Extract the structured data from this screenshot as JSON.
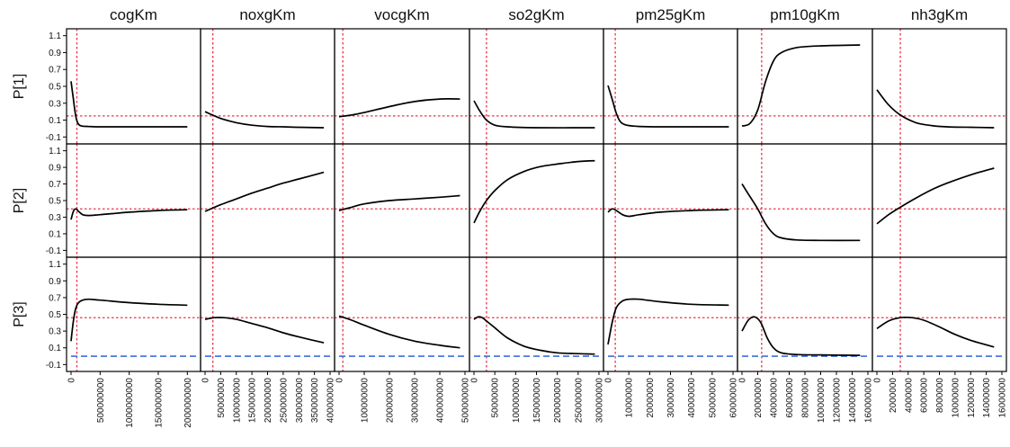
{
  "chart_data": {
    "type": "line",
    "columns": [
      "cogKm",
      "noxgKm",
      "vocgKm",
      "so2gKm",
      "pm25gKm",
      "pm10gKm",
      "nh3gKm"
    ],
    "rows": [
      "P[1]",
      "P[2]",
      "P[3]"
    ],
    "ylim": [
      -0.15,
      1.15
    ],
    "yticks": [
      "-0.1",
      "0.1",
      "0.3",
      "0.5",
      "0.7",
      "0.9",
      "1.1"
    ],
    "xticks": [
      [
        "0",
        "500000000",
        "1000000000",
        "1500000000",
        "2000000000"
      ],
      [
        "0",
        "50000000",
        "100000000",
        "150000000",
        "200000000",
        "250000000",
        "300000000",
        "350000000",
        "400000000"
      ],
      [
        "0",
        "100000000",
        "200000000",
        "300000000",
        "400000000",
        "500000000"
      ],
      [
        "0",
        "50000000",
        "100000000",
        "150000000",
        "200000000",
        "250000000",
        "300000000"
      ],
      [
        "0",
        "10000000",
        "20000000",
        "30000000",
        "40000000",
        "50000000",
        "60000000"
      ],
      [
        "0",
        "20000000",
        "40000000",
        "60000000",
        "80000000",
        "100000000",
        "120000000",
        "140000000",
        "160000000"
      ],
      [
        "0",
        "2000000",
        "4000000",
        "6000000",
        "8000000",
        "10000000",
        "12000000",
        "14000000",
        "16000000"
      ]
    ],
    "xlim": [
      [
        0,
        2150000000
      ],
      [
        0,
        400000000
      ],
      [
        0,
        500000000
      ],
      [
        0,
        300000000
      ],
      [
        0,
        60000000
      ],
      [
        0,
        160000000
      ],
      [
        0,
        16000000
      ]
    ],
    "ref_x": [
      100000000,
      25000000,
      15000000,
      30000000,
      3500000,
      25000000,
      3000000
    ],
    "ref_y": [
      0.15,
      0.4,
      0.46
    ],
    "dashed_y_row3": 0.0,
    "line_color": "#000000",
    "ref_color": "#e8334a",
    "dashed_color": "#3a6fd8",
    "series": [
      [
        {
          "name": "P[1]",
          "x": [
            0,
            40000000,
            80000000,
            120000000,
            180000000,
            300000000,
            500000000,
            1000000000,
            2000000000
          ],
          "y": [
            0.56,
            0.35,
            0.15,
            0.06,
            0.03,
            0.025,
            0.02,
            0.02,
            0.02
          ]
        },
        {
          "name": "P[2]",
          "x": [
            0,
            40000000,
            80000000,
            130000000,
            200000000,
            300000000,
            500000000,
            1000000000,
            1500000000,
            2000000000
          ],
          "y": [
            0.27,
            0.37,
            0.4,
            0.37,
            0.33,
            0.32,
            0.33,
            0.36,
            0.38,
            0.39
          ]
        },
        {
          "name": "P[3]",
          "x": [
            0,
            40000000,
            80000000,
            130000000,
            200000000,
            300000000,
            500000000,
            1000000000,
            1500000000,
            2000000000
          ],
          "y": [
            0.18,
            0.42,
            0.57,
            0.64,
            0.67,
            0.68,
            0.67,
            0.64,
            0.62,
            0.61
          ]
        }
      ],
      [
        {
          "name": "P[1]",
          "x": [
            0,
            50000000,
            100000000,
            150000000,
            200000000,
            250000000,
            300000000,
            380000000
          ],
          "y": [
            0.2,
            0.12,
            0.07,
            0.04,
            0.025,
            0.02,
            0.015,
            0.01
          ]
        },
        {
          "name": "P[2]",
          "x": [
            0,
            50000000,
            100000000,
            150000000,
            200000000,
            250000000,
            300000000,
            380000000
          ],
          "y": [
            0.37,
            0.45,
            0.52,
            0.59,
            0.65,
            0.71,
            0.76,
            0.84
          ]
        },
        {
          "name": "P[3]",
          "x": [
            0,
            30000000,
            60000000,
            100000000,
            150000000,
            200000000,
            250000000,
            300000000,
            380000000
          ],
          "y": [
            0.44,
            0.46,
            0.46,
            0.44,
            0.39,
            0.34,
            0.28,
            0.23,
            0.16
          ]
        }
      ],
      [
        {
          "name": "P[1]",
          "x": [
            0,
            50000000,
            100000000,
            200000000,
            300000000,
            400000000,
            480000000
          ],
          "y": [
            0.14,
            0.16,
            0.19,
            0.26,
            0.32,
            0.35,
            0.35
          ]
        },
        {
          "name": "P[2]",
          "x": [
            0,
            50000000,
            100000000,
            200000000,
            300000000,
            400000000,
            480000000
          ],
          "y": [
            0.38,
            0.42,
            0.46,
            0.5,
            0.52,
            0.54,
            0.56
          ]
        },
        {
          "name": "P[3]",
          "x": [
            0,
            50000000,
            100000000,
            200000000,
            300000000,
            400000000,
            480000000
          ],
          "y": [
            0.48,
            0.43,
            0.37,
            0.26,
            0.18,
            0.13,
            0.1
          ]
        }
      ],
      [
        {
          "name": "P[1]",
          "x": [
            0,
            15000000,
            30000000,
            50000000,
            80000000,
            150000000,
            290000000
          ],
          "y": [
            0.33,
            0.2,
            0.1,
            0.04,
            0.02,
            0.01,
            0.01
          ]
        },
        {
          "name": "P[2]",
          "x": [
            0,
            15000000,
            30000000,
            50000000,
            80000000,
            120000000,
            160000000,
            200000000,
            250000000,
            290000000
          ],
          "y": [
            0.23,
            0.38,
            0.5,
            0.62,
            0.75,
            0.85,
            0.91,
            0.94,
            0.97,
            0.98
          ]
        },
        {
          "name": "P[3]",
          "x": [
            0,
            10000000,
            20000000,
            30000000,
            50000000,
            80000000,
            120000000,
            160000000,
            200000000,
            250000000,
            290000000
          ],
          "y": [
            0.44,
            0.47,
            0.46,
            0.42,
            0.34,
            0.22,
            0.12,
            0.07,
            0.04,
            0.03,
            0.025
          ]
        }
      ],
      [
        {
          "name": "P[1]",
          "x": [
            0,
            2000000,
            4000000,
            6000000,
            9000000,
            15000000,
            25000000,
            40000000,
            58000000
          ],
          "y": [
            0.51,
            0.35,
            0.18,
            0.08,
            0.04,
            0.025,
            0.02,
            0.02,
            0.02
          ]
        },
        {
          "name": "P[2]",
          "x": [
            0,
            2000000,
            4000000,
            7000000,
            10000000,
            15000000,
            25000000,
            40000000,
            58000000
          ],
          "y": [
            0.36,
            0.4,
            0.38,
            0.33,
            0.31,
            0.33,
            0.36,
            0.38,
            0.39
          ]
        },
        {
          "name": "P[3]",
          "x": [
            0,
            2000000,
            4000000,
            7000000,
            10000000,
            15000000,
            25000000,
            40000000,
            58000000
          ],
          "y": [
            0.14,
            0.4,
            0.58,
            0.66,
            0.68,
            0.68,
            0.65,
            0.62,
            0.61
          ]
        }
      ],
      [
        {
          "name": "P[1]",
          "x": [
            0,
            10000000,
            20000000,
            30000000,
            40000000,
            50000000,
            70000000,
            100000000,
            150000000
          ],
          "y": [
            0.03,
            0.06,
            0.22,
            0.56,
            0.8,
            0.9,
            0.96,
            0.98,
            0.99
          ]
        },
        {
          "name": "P[2]",
          "x": [
            0,
            10000000,
            20000000,
            30000000,
            40000000,
            50000000,
            70000000,
            100000000,
            150000000
          ],
          "y": [
            0.7,
            0.55,
            0.4,
            0.22,
            0.1,
            0.05,
            0.025,
            0.02,
            0.02
          ]
        },
        {
          "name": "P[3]",
          "x": [
            0,
            8000000,
            16000000,
            24000000,
            32000000,
            40000000,
            50000000,
            70000000,
            100000000,
            150000000
          ],
          "y": [
            0.3,
            0.43,
            0.47,
            0.4,
            0.22,
            0.1,
            0.04,
            0.02,
            0.015,
            0.01
          ]
        }
      ],
      [
        {
          "name": "P[1]",
          "x": [
            0,
            1500000,
            3000000,
            5000000,
            7000000,
            9000000,
            12000000,
            15000000
          ],
          "y": [
            0.46,
            0.28,
            0.16,
            0.07,
            0.035,
            0.02,
            0.015,
            0.01
          ]
        },
        {
          "name": "P[2]",
          "x": [
            0,
            1500000,
            3000000,
            5000000,
            7000000,
            9000000,
            12000000,
            15000000
          ],
          "y": [
            0.22,
            0.33,
            0.42,
            0.53,
            0.63,
            0.71,
            0.81,
            0.89
          ]
        },
        {
          "name": "P[3]",
          "x": [
            0,
            1500000,
            3000000,
            4500000,
            6000000,
            8000000,
            10000000,
            12000000,
            15000000
          ],
          "y": [
            0.33,
            0.42,
            0.46,
            0.46,
            0.43,
            0.35,
            0.26,
            0.19,
            0.11
          ]
        }
      ]
    ]
  }
}
